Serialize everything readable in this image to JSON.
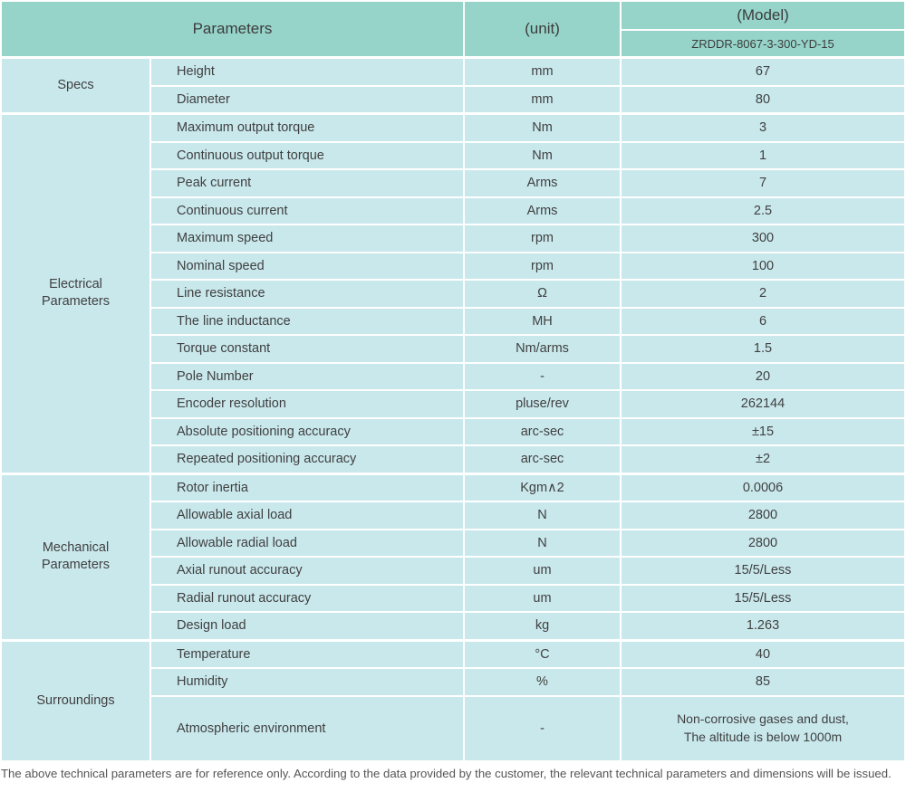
{
  "colors": {
    "header_bg": "#96d4ca",
    "cell_bg": "#c9e8ec",
    "text": "#404040",
    "footer_text": "#555555"
  },
  "header": {
    "parameters_label": "Parameters",
    "unit_label": "(unit)",
    "model_label": "(Model)",
    "model_number": "ZRDDR-8067-3-300-YD-15"
  },
  "sections": [
    {
      "label": "Specs",
      "rows": [
        {
          "name": "Height",
          "unit": "mm",
          "value": "67"
        },
        {
          "name": "Diameter",
          "unit": "mm",
          "value": "80"
        }
      ]
    },
    {
      "label": "Electrical Parameters",
      "rows": [
        {
          "name": "Maximum output torque",
          "unit": "Nm",
          "value": "3"
        },
        {
          "name": "Continuous output torque",
          "unit": "Nm",
          "value": "1"
        },
        {
          "name": "Peak current",
          "unit": "Arms",
          "value": "7"
        },
        {
          "name": "Continuous current",
          "unit": "Arms",
          "value": "2.5"
        },
        {
          "name": "Maximum speed",
          "unit": "rpm",
          "value": "300"
        },
        {
          "name": "Nominal speed",
          "unit": "rpm",
          "value": "100"
        },
        {
          "name": "Line resistance",
          "unit": "Ω",
          "value": "2"
        },
        {
          "name": "The line inductance",
          "unit": "MH",
          "value": "6"
        },
        {
          "name": "Torque constant",
          "unit": "Nm/arms",
          "value": "1.5"
        },
        {
          "name": "Pole Number",
          "unit": "-",
          "value": "20"
        },
        {
          "name": "Encoder resolution",
          "unit": "pluse/rev",
          "value": "262144"
        },
        {
          "name": "Absolute positioning accuracy",
          "unit": "arc-sec",
          "value": "±15"
        },
        {
          "name": "Repeated positioning accuracy",
          "unit": "arc-sec",
          "value": "±2"
        }
      ]
    },
    {
      "label": "Mechanical Parameters",
      "rows": [
        {
          "name": "Rotor inertia",
          "unit": "Kgm∧2",
          "value": "0.0006"
        },
        {
          "name": "Allowable axial load",
          "unit": "N",
          "value": "2800"
        },
        {
          "name": "Allowable radial load",
          "unit": "N",
          "value": "2800"
        },
        {
          "name": "Axial runout accuracy",
          "unit": "um",
          "value": "15/5/Less"
        },
        {
          "name": "Radial runout accuracy",
          "unit": "um",
          "value": "15/5/Less"
        },
        {
          "name": "Design load",
          "unit": "kg",
          "value": "1.263"
        }
      ]
    },
    {
      "label": "Surroundings",
      "rows": [
        {
          "name": "Temperature",
          "unit": "°C",
          "value": "40"
        },
        {
          "name": "Humidity",
          "unit": "%",
          "value": "85"
        },
        {
          "name": "Atmospheric environment",
          "unit": "-",
          "value": "Non-corrosive gases and dust,\nThe altitude is below 1000m",
          "tall": true
        }
      ]
    }
  ],
  "footer": {
    "note": "The above technical parameters are for reference only. According to the data provided by the customer, the relevant technical parameters and dimensions will be issued."
  }
}
